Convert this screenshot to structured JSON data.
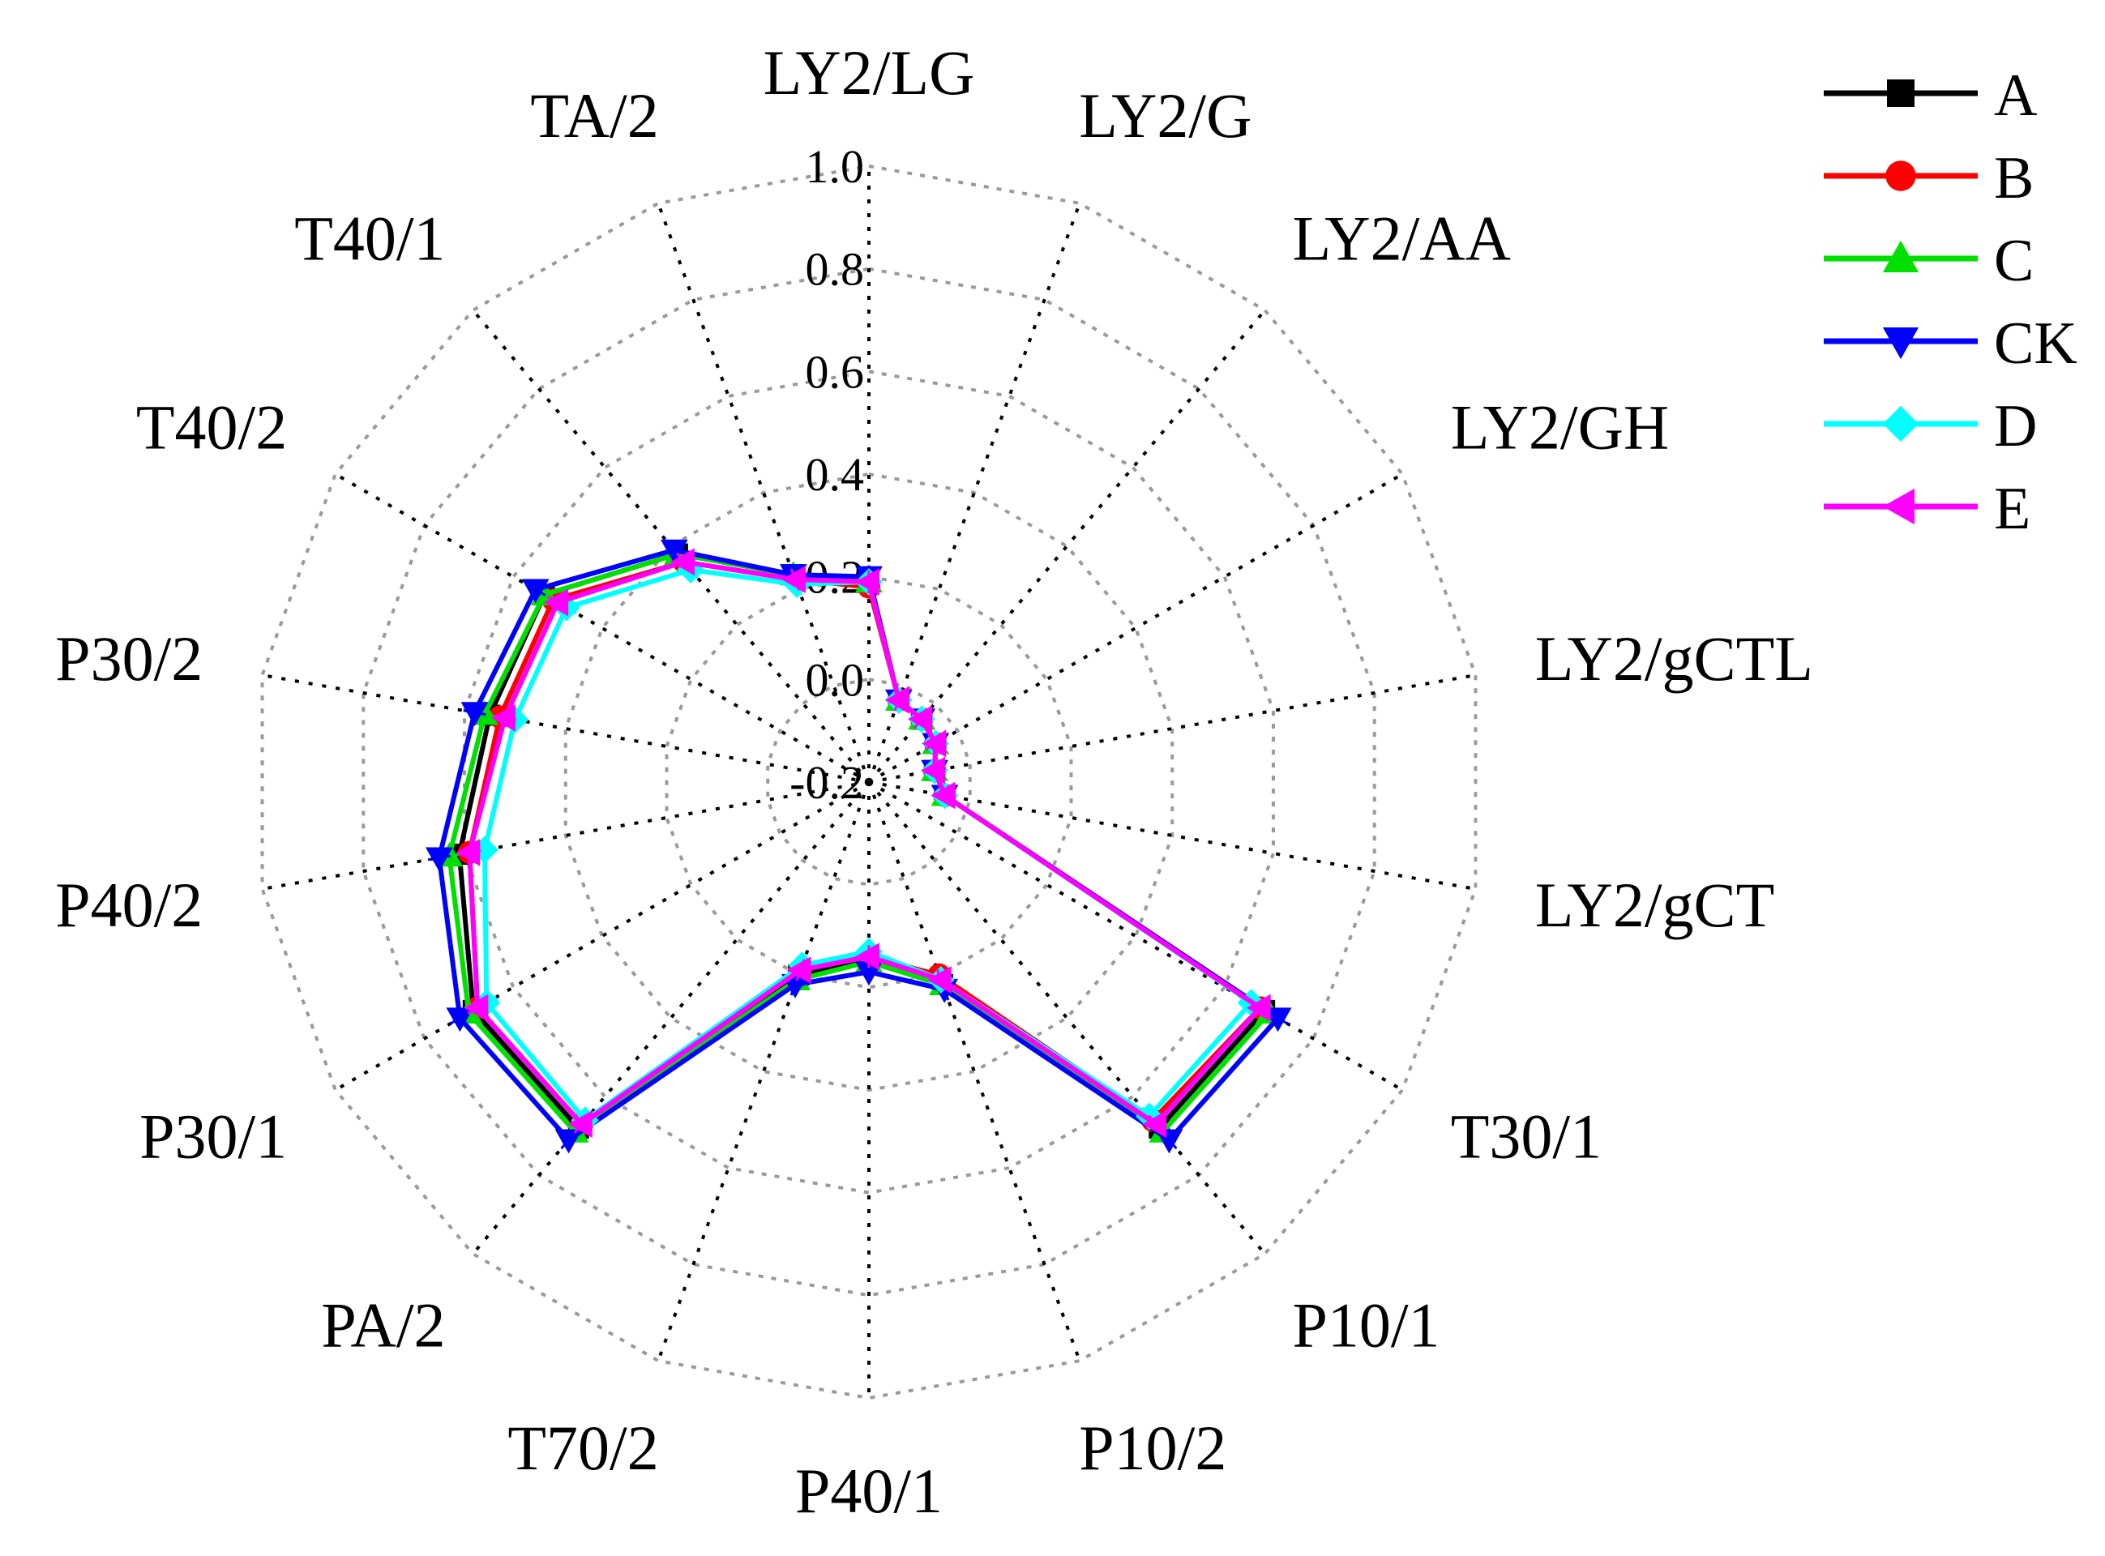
{
  "chart_data": {
    "type": "radar",
    "axes": [
      "LY2/LG",
      "LY2/G",
      "LY2/AA",
      "LY2/GH",
      "LY2/gCTL",
      "LY2/gCT",
      "T30/1",
      "P10/1",
      "P10/2",
      "P40/1",
      "T70/2",
      "PA/2",
      "P30/1",
      "P40/2",
      "P30/2",
      "T40/2",
      "T40/1",
      "TA/2"
    ],
    "radial_range": [
      -0.2,
      1.0
    ],
    "radial_ticks": [
      "-0.2",
      "0.0",
      "0.2",
      "0.4",
      "0.6",
      "0.8",
      "1.0"
    ],
    "grid": true,
    "legend_position": "top-right",
    "series": [
      {
        "name": "A",
        "color": "#000000",
        "marker": "square",
        "values": [
          0.19,
          -0.03,
          -0.04,
          -0.05,
          -0.07,
          -0.05,
          0.69,
          0.68,
          0.22,
          0.15,
          0.2,
          0.68,
          0.69,
          0.61,
          0.55,
          0.53,
          0.38,
          0.23
        ]
      },
      {
        "name": "B",
        "color": "#ff0000",
        "marker": "circle",
        "values": [
          0.18,
          -0.03,
          -0.04,
          -0.05,
          -0.07,
          -0.05,
          0.68,
          0.66,
          0.2,
          0.14,
          0.19,
          0.67,
          0.68,
          0.59,
          0.53,
          0.51,
          0.36,
          0.22
        ]
      },
      {
        "name": "C",
        "color": "#00e000",
        "marker": "triangle-up",
        "values": [
          0.19,
          -0.03,
          -0.04,
          -0.05,
          -0.07,
          -0.05,
          0.7,
          0.69,
          0.22,
          0.15,
          0.21,
          0.69,
          0.7,
          0.63,
          0.56,
          0.53,
          0.38,
          0.23
        ]
      },
      {
        "name": "CK",
        "color": "#0000ff",
        "marker": "triangle-down",
        "values": [
          0.2,
          -0.03,
          -0.04,
          -0.05,
          -0.07,
          -0.05,
          0.72,
          0.71,
          0.23,
          0.17,
          0.22,
          0.71,
          0.72,
          0.65,
          0.58,
          0.55,
          0.39,
          0.23
        ]
      },
      {
        "name": "D",
        "color": "#00ffff",
        "marker": "diamond",
        "values": [
          0.19,
          -0.03,
          -0.04,
          -0.05,
          -0.07,
          -0.05,
          0.66,
          0.65,
          0.21,
          0.13,
          0.18,
          0.66,
          0.66,
          0.56,
          0.5,
          0.48,
          0.34,
          0.21
        ]
      },
      {
        "name": "E",
        "color": "#ff00ff",
        "marker": "triangle-left",
        "values": [
          0.19,
          -0.03,
          -0.04,
          -0.05,
          -0.07,
          -0.05,
          0.68,
          0.67,
          0.21,
          0.14,
          0.19,
          0.67,
          0.68,
          0.59,
          0.52,
          0.5,
          0.36,
          0.22
        ]
      }
    ]
  }
}
